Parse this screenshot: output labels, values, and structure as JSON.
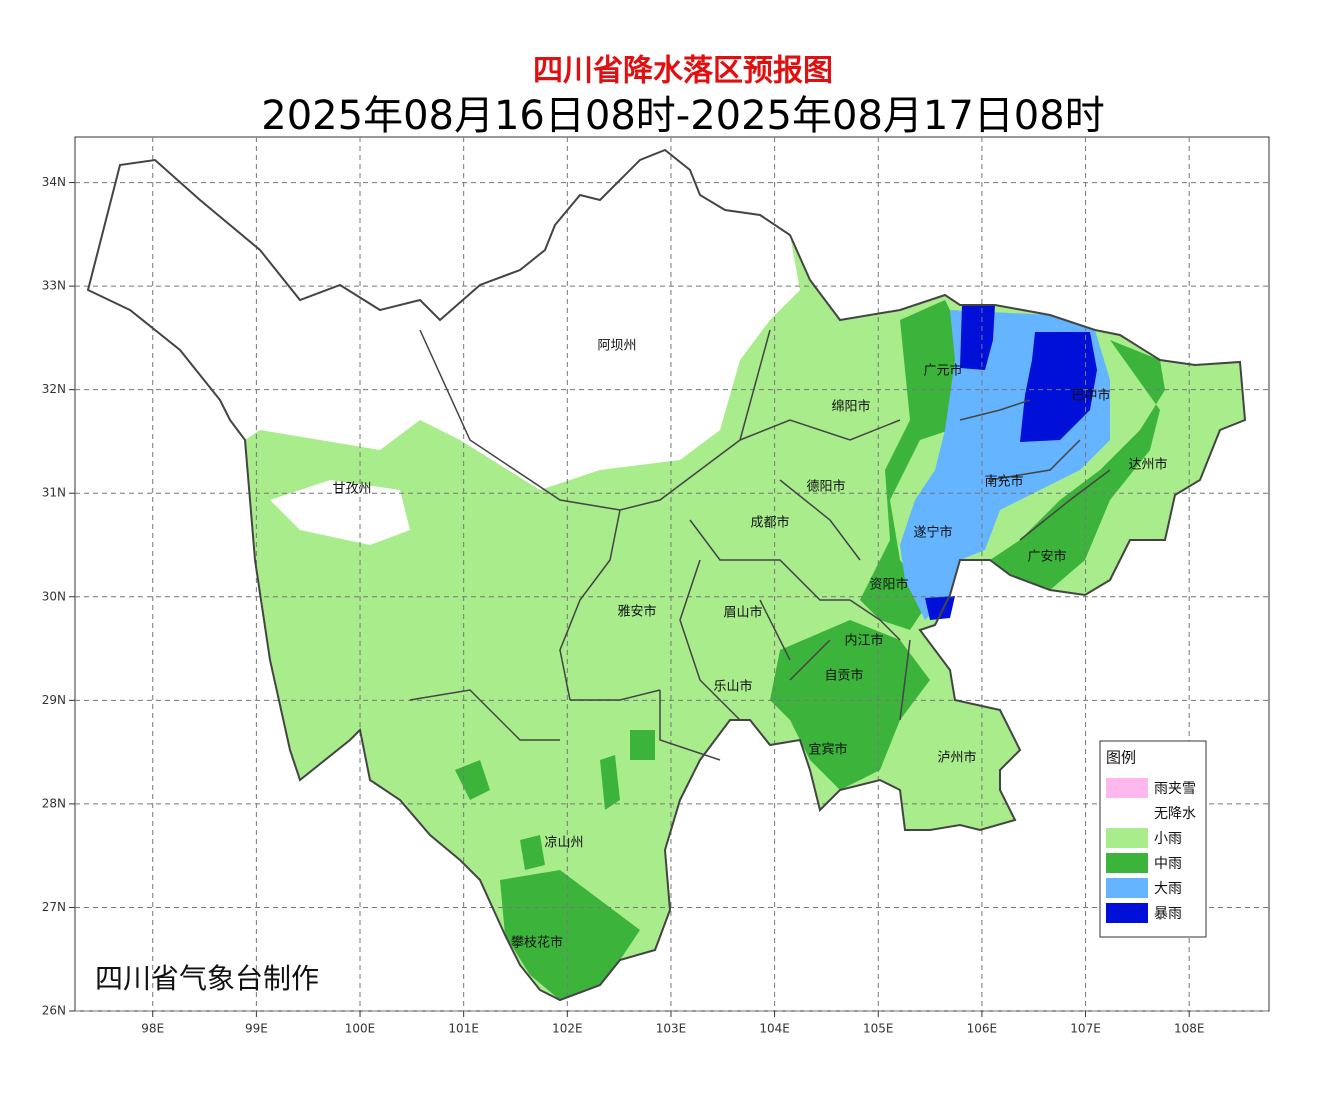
{
  "title": "四川省降水落区预报图",
  "subtitle": "2025年08月16日08时-2025年08月17日08时",
  "xlim": [
    97.25,
    108.77
  ],
  "ylim": [
    26,
    34.44
  ],
  "lat_ticks": [
    {
      "value": 34,
      "label": "34N"
    },
    {
      "value": 33,
      "label": "33N"
    },
    {
      "value": 32,
      "label": "32N"
    },
    {
      "value": 31,
      "label": "31N"
    },
    {
      "value": 30,
      "label": "30N"
    },
    {
      "value": 29,
      "label": "29N"
    },
    {
      "value": 28,
      "label": "28N"
    },
    {
      "value": 27,
      "label": "27N"
    },
    {
      "value": 26,
      "label": "26N"
    }
  ],
  "lon_ticks": [
    {
      "value": 98,
      "label": "98E"
    },
    {
      "value": 99,
      "label": "99E"
    },
    {
      "value": 100,
      "label": "100E"
    },
    {
      "value": 101,
      "label": "101E"
    },
    {
      "value": 102,
      "label": "102E"
    },
    {
      "value": 103,
      "label": "103E"
    },
    {
      "value": 104,
      "label": "104E"
    },
    {
      "value": 105,
      "label": "105E"
    },
    {
      "value": 106,
      "label": "106E"
    },
    {
      "value": 107,
      "label": "107E"
    },
    {
      "value": 108,
      "label": "108E"
    }
  ],
  "grid": true,
  "cities": [
    "阿坝州",
    "甘孜州",
    "广元市",
    "巴中市",
    "绵阳市",
    "达州市",
    "德阳市",
    "南充市",
    "成都市",
    "遂宁市",
    "广安市",
    "资阳市",
    "雅安市",
    "眉山市",
    "内江市",
    "自贡市",
    "乐山市",
    "宜宾市",
    "泸州市",
    "凉山州",
    "攀枝花市"
  ],
  "legend": {
    "title": "图例",
    "items": [
      {
        "label": "雨夹雪",
        "color": "#ffb8ee"
      },
      {
        "label": "无降水",
        "color": "#ffffff"
      },
      {
        "label": "小雨",
        "color": "#a8ec8c"
      },
      {
        "label": "中雨",
        "color": "#3cb43c"
      },
      {
        "label": "大雨",
        "color": "#64b4ff"
      },
      {
        "label": "暴雨",
        "color": "#0010d8"
      }
    ]
  },
  "credit": "四川省气象台制作"
}
